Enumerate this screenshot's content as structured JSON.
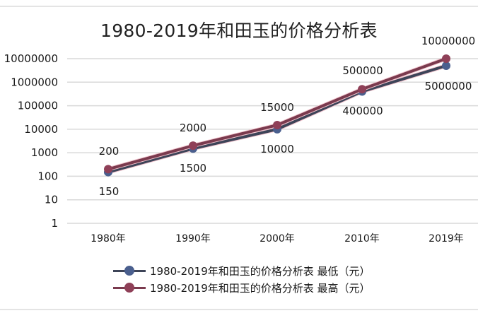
{
  "chart_data": {
    "type": "line",
    "title": "1980-2019年和田玉的价格分析表",
    "xlabel": "",
    "ylabel": "",
    "yscale": "log",
    "ylim": [
      1,
      10000000
    ],
    "grid": true,
    "legend_position": "bottom",
    "categories": [
      "1980年",
      "1990年",
      "2000年",
      "2010年",
      "2019年"
    ],
    "yticks": [
      "10000000",
      "1000000",
      "100000",
      "10000",
      "1000",
      "100",
      "10",
      "1"
    ],
    "series": [
      {
        "name": "1980-2019年和田玉的价格分析表 最低（元）",
        "color": "#3b4f7a",
        "values": [
          150,
          1500,
          10000,
          400000,
          5000000
        ],
        "labels": [
          "150",
          "1500",
          "10000",
          "400000",
          "5000000"
        ]
      },
      {
        "name": "1980-2019年和田玉的价格分析表 最高（元）",
        "color": "#8a3a52",
        "values": [
          200,
          2000,
          15000,
          500000,
          10000000
        ],
        "labels": [
          "200",
          "2000",
          "15000",
          "500000",
          "10000000"
        ]
      }
    ]
  },
  "colors": {
    "low_line": "#3b4f7a",
    "high_line": "#8a3a52",
    "gridline": "#d9d9d9",
    "background": "#ffffff"
  }
}
